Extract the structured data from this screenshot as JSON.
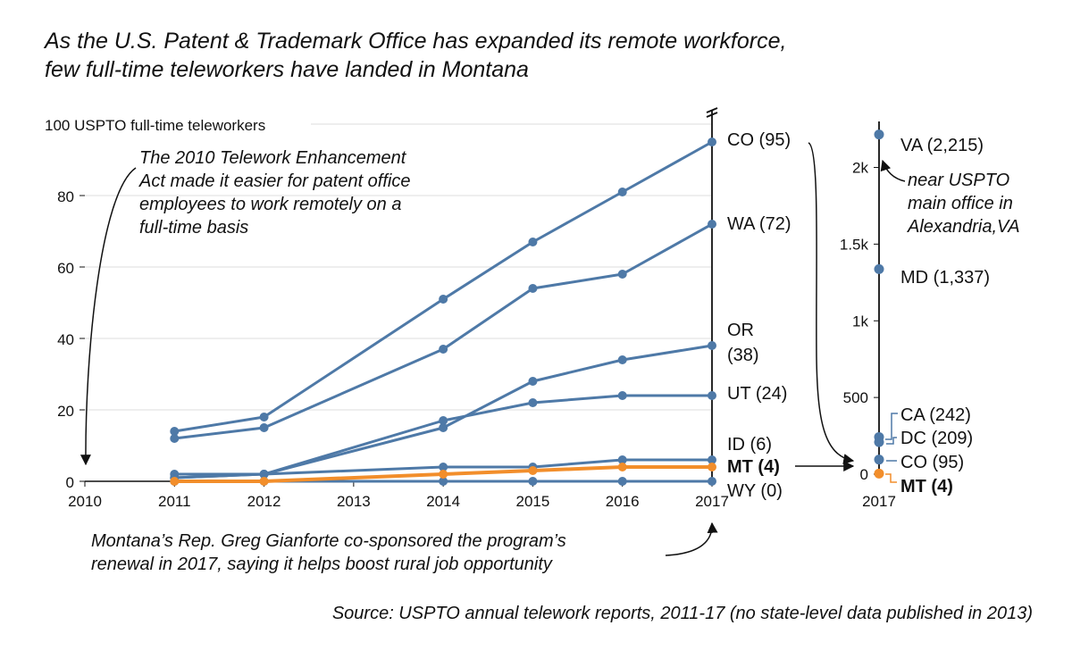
{
  "title": {
    "line1": "As the U.S. Patent & Trademark Office has expanded its remote workforce,",
    "line2": "few full-time teleworkers have landed in Montana"
  },
  "annotations": {
    "act_line1": "The 2010 Telework Enhancement",
    "act_line2": "Act made it easier for patent office",
    "act_line3": "employees to work remotely on a",
    "act_line4": "full-time basis",
    "gianforte_line1": "Montana’s Rep. Greg Gianforte co-sponsored the program’s",
    "gianforte_line2": "renewal in 2017, saying it helps boost rural job opportunity",
    "va_note_line1": "near USPTO",
    "va_note_line2": "main office in",
    "va_note_line3": "Alexandria,VA"
  },
  "source": "Source: USPTO annual telework reports, 2011-17 (no state-level data published in 2013)",
  "colors": {
    "series": "#4e79a7",
    "highlight": "#f28e2b",
    "axis": "#111111",
    "grid": "#dddddd"
  },
  "chart_data": [
    {
      "type": "line",
      "ylabel": "100 USPTO full-time teleworkers",
      "x_ticks": [
        "2010",
        "2011",
        "2012",
        "2013",
        "2014",
        "2015",
        "2016",
        "2017"
      ],
      "y_ticks": [
        "0",
        "20",
        "40",
        "60",
        "80"
      ],
      "xlim": [
        2010,
        2017
      ],
      "ylim": [
        0,
        100
      ],
      "grid": true,
      "x": [
        2011,
        2012,
        2014,
        2015,
        2016,
        2017
      ],
      "series": [
        {
          "name": "CO",
          "end_label": "CO (95)",
          "values": [
            14,
            18,
            51,
            67,
            81,
            95
          ]
        },
        {
          "name": "WA",
          "end_label": "WA (72)",
          "values": [
            12,
            15,
            37,
            54,
            58,
            72
          ]
        },
        {
          "name": "OR",
          "end_label_line1": "OR",
          "end_label_line2": "(38)",
          "values": [
            1,
            2,
            15,
            28,
            34,
            38
          ]
        },
        {
          "name": "UT",
          "end_label": "UT (24)",
          "values": [
            1,
            2,
            17,
            22,
            24,
            24
          ]
        },
        {
          "name": "ID",
          "end_label": "ID (6)",
          "values": [
            2,
            2,
            4,
            4,
            6,
            6
          ]
        },
        {
          "name": "WY",
          "end_label": "WY (0)",
          "values": [
            0,
            0,
            0,
            0,
            0,
            0
          ]
        },
        {
          "name": "MT",
          "end_label": "MT (4)",
          "highlight": true,
          "values": [
            0,
            0,
            2,
            3,
            4,
            4
          ]
        }
      ]
    },
    {
      "type": "scatter",
      "x_label": "2017",
      "y_ticks": [
        "0",
        "500",
        "1k",
        "1.5k",
        "2k"
      ],
      "y_tick_values": [
        0,
        500,
        1000,
        1500,
        2000
      ],
      "ylim": [
        0,
        2300
      ],
      "points": [
        {
          "label": "VA (2,215)",
          "value": 2215
        },
        {
          "label": "MD (1,337)",
          "value": 1337
        },
        {
          "label": "CA (242)",
          "value": 242
        },
        {
          "label": "DC (209)",
          "value": 209
        },
        {
          "label": "CO (95)",
          "value": 95
        },
        {
          "label": "MT (4)",
          "value": 4,
          "highlight": true
        }
      ]
    }
  ]
}
